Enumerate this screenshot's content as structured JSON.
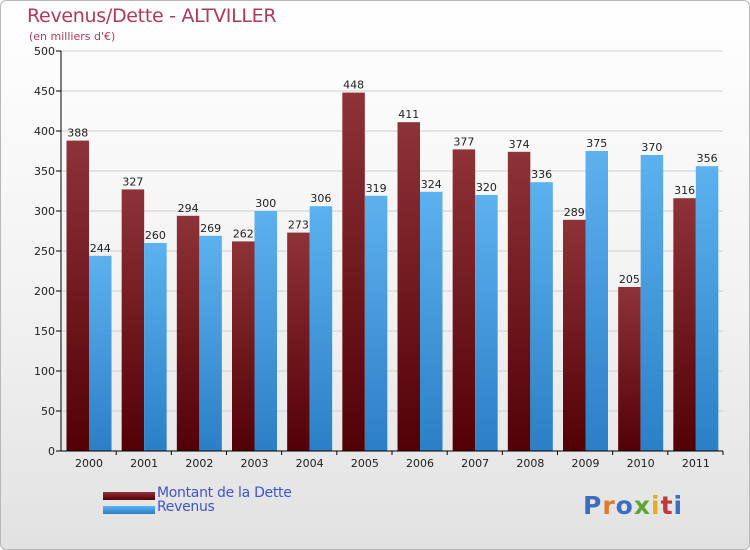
{
  "header": {
    "title": "Revenus/Dette - ALTVILLER",
    "subtitle": "(en milliers d'€)"
  },
  "legend": {
    "debt_label": "Montant de la Dette",
    "revenue_label": "Revenus"
  },
  "logo": {
    "text": "Proxiti"
  },
  "colors": {
    "debt": "#6b1218",
    "revenue": "#4aa3e6",
    "title": "#b0395b",
    "legend_text": "#3d55d6"
  },
  "chart_data": {
    "type": "bar",
    "title": "Revenus/Dette - ALTVILLER",
    "ylabel": "(en milliers d'€)",
    "ylim": [
      0,
      500
    ],
    "yticks": [
      0,
      50,
      100,
      150,
      200,
      250,
      300,
      350,
      400,
      450,
      500
    ],
    "grid": true,
    "legend_position": "bottom-left",
    "categories": [
      "2000",
      "2001",
      "2002",
      "2003",
      "2004",
      "2005",
      "2006",
      "2007",
      "2008",
      "2009",
      "2010",
      "2011"
    ],
    "series": [
      {
        "name": "Montant de la Dette",
        "values": [
          388,
          327,
          294,
          262,
          273,
          448,
          411,
          377,
          374,
          289,
          205,
          316
        ]
      },
      {
        "name": "Revenus",
        "values": [
          244,
          260,
          269,
          300,
          306,
          319,
          324,
          320,
          336,
          375,
          370,
          356
        ]
      }
    ]
  }
}
